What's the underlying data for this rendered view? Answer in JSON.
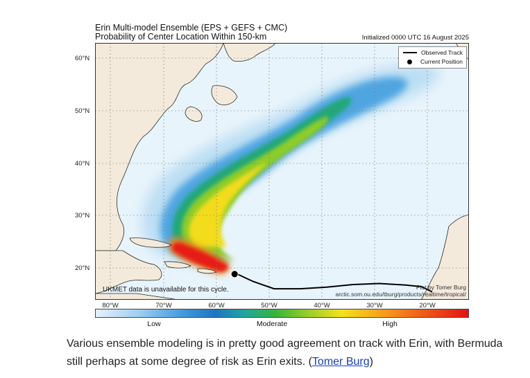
{
  "figure": {
    "title_line1": "Erin Multi-model Ensemble (EPS + GEFS + CMC)",
    "title_line2": "Probability of Center Location Within 150-km",
    "initialized": "Initialized 0000 UTC 16 August 2025",
    "legend": {
      "observed_track": "Observed Track",
      "current_position": "Current Position"
    },
    "note": "UKMET data is unavailable for this cycle.",
    "credit_line1": "Plot by Tomer Burg",
    "credit_line2": "arctic.som.ou.edu/tburg/products/realtime/tropical/",
    "lat_labels": [
      "60°N",
      "50°N",
      "40°N",
      "30°N",
      "20°N"
    ],
    "lon_labels": [
      "80°W",
      "70°W",
      "60°W",
      "50°W",
      "40°W",
      "30°W",
      "20°W"
    ],
    "colorbar_labels": [
      "Low",
      "Moderate",
      "High"
    ]
  },
  "map_data": {
    "extent": {
      "lon_min": -84,
      "lon_max": -13,
      "lat_min": 14.5,
      "lat_max": 63.5
    },
    "observed_track": [
      [
        -57,
        19.4
      ],
      [
        -54,
        18.0
      ],
      [
        -50,
        16.6
      ],
      [
        -45,
        16.6
      ],
      [
        -40,
        16.9
      ],
      [
        -35,
        17.4
      ],
      [
        -30,
        17.6
      ],
      [
        -25,
        17.3
      ],
      [
        -22,
        17.0
      ],
      [
        -20,
        16.0
      ]
    ],
    "current_position": [
      -57.5,
      19.4
    ],
    "colors": {
      "ocean": "#e8f4fb",
      "land": "#f4eadb",
      "coast": "#2a2a2a",
      "track": "#000000"
    }
  },
  "caption": {
    "text": "Various ensemble modeling is in pretty good agreement on track with Erin, with Bermuda still perhaps at some degree of risk as Erin exits. (",
    "link": "Tomer Burg",
    "end": ")"
  }
}
